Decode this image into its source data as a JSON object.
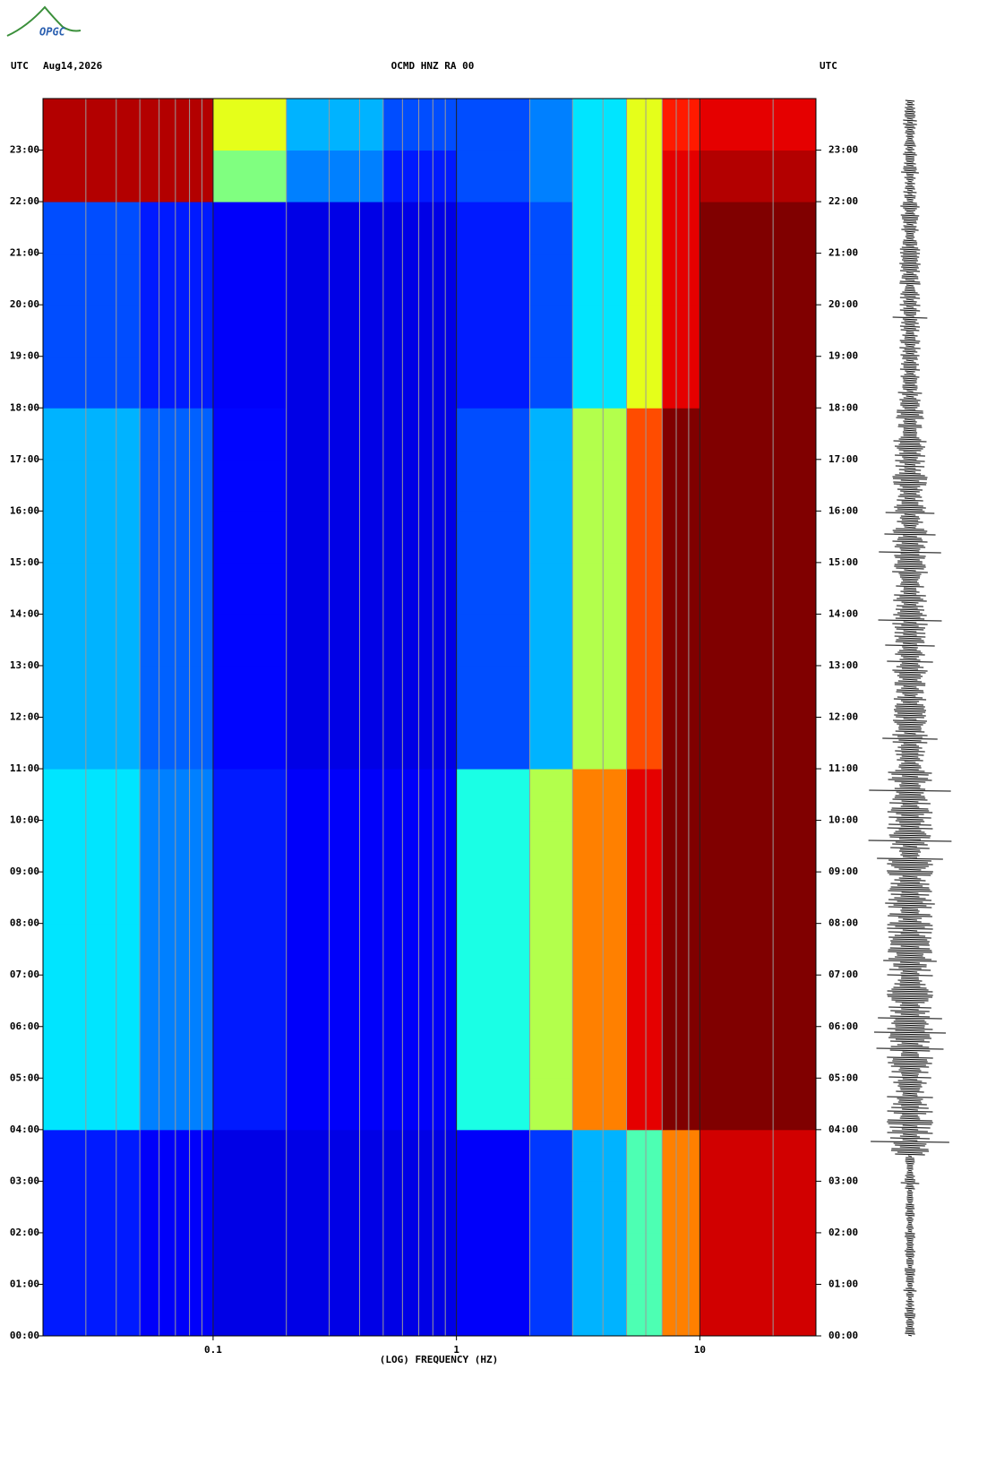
{
  "logo": "OPGC",
  "chart_data": {
    "type": "spectrogram",
    "left_header": "UTC",
    "date": "Aug14,2026",
    "title": "OCMD HNZ RA 00",
    "right_header": "UTC",
    "xlabel": "(LOG) FREQUENCY (HZ)",
    "xscale": "log",
    "xlim": [
      0.02,
      30
    ],
    "xticks": [
      0.1,
      1,
      10
    ],
    "xgrid_minor": [
      0.03,
      0.04,
      0.05,
      0.06,
      0.07,
      0.08,
      0.09,
      0.2,
      0.3,
      0.4,
      0.5,
      0.6,
      0.7,
      0.8,
      0.9,
      2,
      3,
      4,
      5,
      6,
      7,
      8,
      9,
      20
    ],
    "ylim": [
      0,
      24
    ],
    "yticks": [
      {
        "value": 0,
        "label": "00:00"
      },
      {
        "value": 1,
        "label": "01:00"
      },
      {
        "value": 2,
        "label": "02:00"
      },
      {
        "value": 3,
        "label": "03:00"
      },
      {
        "value": 4,
        "label": "04:00"
      },
      {
        "value": 5,
        "label": "05:00"
      },
      {
        "value": 6,
        "label": "06:00"
      },
      {
        "value": 7,
        "label": "07:00"
      },
      {
        "value": 8,
        "label": "08:00"
      },
      {
        "value": 9,
        "label": "09:00"
      },
      {
        "value": 10,
        "label": "10:00"
      },
      {
        "value": 11,
        "label": "11:00"
      },
      {
        "value": 12,
        "label": "12:00"
      },
      {
        "value": 13,
        "label": "13:00"
      },
      {
        "value": 14,
        "label": "14:00"
      },
      {
        "value": 15,
        "label": "15:00"
      },
      {
        "value": 16,
        "label": "16:00"
      },
      {
        "value": 17,
        "label": "17:00"
      },
      {
        "value": 18,
        "label": "18:00"
      },
      {
        "value": 19,
        "label": "19:00"
      },
      {
        "value": 20,
        "label": "20:00"
      },
      {
        "value": 21,
        "label": "21:00"
      },
      {
        "value": 22,
        "label": "22:00"
      },
      {
        "value": 23,
        "label": "23:00"
      }
    ],
    "colormap": "jet",
    "zlim": [
      0,
      1
    ],
    "freq_bins": [
      0.02,
      0.05,
      0.1,
      0.2,
      0.5,
      1,
      2,
      3,
      5,
      7,
      10,
      30
    ],
    "z": [
      [
        0.15,
        0.12,
        0.1,
        0.1,
        0.1,
        0.12,
        0.18,
        0.3,
        0.45,
        0.75,
        0.92
      ],
      [
        0.15,
        0.12,
        0.1,
        0.1,
        0.1,
        0.12,
        0.18,
        0.3,
        0.45,
        0.75,
        0.92
      ],
      [
        0.15,
        0.12,
        0.1,
        0.1,
        0.1,
        0.12,
        0.18,
        0.3,
        0.45,
        0.75,
        0.92
      ],
      [
        0.15,
        0.12,
        0.1,
        0.1,
        0.1,
        0.12,
        0.18,
        0.3,
        0.45,
        0.75,
        0.92
      ],
      [
        0.35,
        0.25,
        0.15,
        0.12,
        0.12,
        0.4,
        0.55,
        0.75,
        0.9,
        1,
        1
      ],
      [
        0.35,
        0.25,
        0.15,
        0.12,
        0.12,
        0.4,
        0.55,
        0.75,
        0.9,
        1,
        1
      ],
      [
        0.35,
        0.25,
        0.15,
        0.12,
        0.12,
        0.4,
        0.55,
        0.75,
        0.9,
        1,
        1
      ],
      [
        0.35,
        0.25,
        0.15,
        0.12,
        0.12,
        0.4,
        0.55,
        0.75,
        0.9,
        1,
        1
      ],
      [
        0.35,
        0.25,
        0.15,
        0.12,
        0.12,
        0.4,
        0.55,
        0.75,
        0.9,
        1,
        1
      ],
      [
        0.35,
        0.25,
        0.15,
        0.12,
        0.12,
        0.4,
        0.55,
        0.75,
        0.9,
        1,
        1
      ],
      [
        0.35,
        0.25,
        0.15,
        0.12,
        0.12,
        0.4,
        0.55,
        0.75,
        0.9,
        1,
        1
      ],
      [
        0.3,
        0.22,
        0.13,
        0.1,
        0.1,
        0.2,
        0.3,
        0.55,
        0.8,
        1,
        1
      ],
      [
        0.3,
        0.22,
        0.13,
        0.1,
        0.1,
        0.2,
        0.3,
        0.55,
        0.8,
        1,
        1
      ],
      [
        0.3,
        0.22,
        0.13,
        0.1,
        0.1,
        0.2,
        0.3,
        0.55,
        0.8,
        1,
        1
      ],
      [
        0.3,
        0.22,
        0.13,
        0.1,
        0.1,
        0.2,
        0.3,
        0.55,
        0.8,
        1,
        1
      ],
      [
        0.3,
        0.22,
        0.13,
        0.1,
        0.1,
        0.2,
        0.3,
        0.55,
        0.8,
        1,
        1
      ],
      [
        0.3,
        0.22,
        0.13,
        0.1,
        0.1,
        0.2,
        0.3,
        0.55,
        0.8,
        1,
        1
      ],
      [
        0.3,
        0.22,
        0.13,
        0.1,
        0.1,
        0.2,
        0.3,
        0.55,
        0.8,
        1,
        1
      ],
      [
        0.2,
        0.15,
        0.12,
        0.1,
        0.1,
        0.15,
        0.2,
        0.35,
        0.6,
        0.9,
        1
      ],
      [
        0.2,
        0.15,
        0.12,
        0.1,
        0.1,
        0.15,
        0.2,
        0.35,
        0.6,
        0.9,
        1
      ],
      [
        0.2,
        0.15,
        0.12,
        0.1,
        0.1,
        0.15,
        0.2,
        0.35,
        0.6,
        0.9,
        1
      ],
      [
        0.2,
        0.15,
        0.12,
        0.1,
        0.1,
        0.15,
        0.2,
        0.35,
        0.6,
        0.9,
        1
      ],
      [
        0.95,
        0.95,
        0.5,
        0.25,
        0.15,
        0.2,
        0.25,
        0.35,
        0.6,
        0.9,
        0.95
      ],
      [
        0.95,
        0.95,
        0.6,
        0.3,
        0.2,
        0.2,
        0.25,
        0.35,
        0.6,
        0.85,
        0.9
      ]
    ]
  }
}
